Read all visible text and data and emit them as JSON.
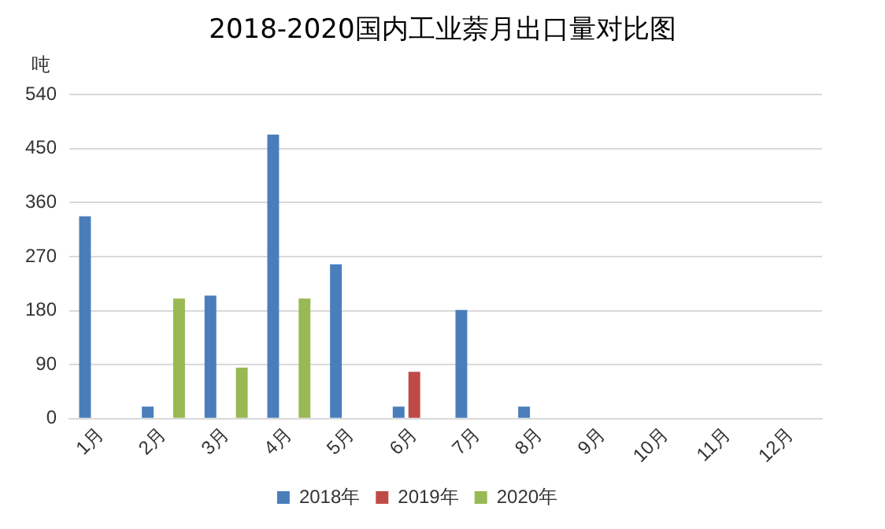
{
  "chart_data": {
    "type": "bar",
    "title": "2018-2020国内工业萘月出口量对比图",
    "ylabel": "吨",
    "categories": [
      "1月",
      "2月",
      "3月",
      "4月",
      "5月",
      "6月",
      "7月",
      "8月",
      "9月",
      "10月",
      "11月",
      "12月"
    ],
    "series": [
      {
        "name": "2018年",
        "color": "#4a7ebb",
        "values": [
          337,
          20,
          205,
          473,
          257,
          20,
          181,
          20,
          null,
          null,
          null,
          null
        ]
      },
      {
        "name": "2019年",
        "color": "#be4b48",
        "values": [
          null,
          null,
          null,
          null,
          null,
          78,
          null,
          null,
          null,
          null,
          null,
          null
        ]
      },
      {
        "name": "2020年",
        "color": "#98b954",
        "values": [
          null,
          200,
          85,
          200,
          null,
          null,
          null,
          null,
          null,
          null,
          null,
          null
        ]
      }
    ],
    "ylim": [
      0,
      540
    ],
    "yticks": [
      0,
      90,
      180,
      270,
      360,
      450,
      540
    ],
    "grid": "y",
    "legend": "bottom"
  }
}
